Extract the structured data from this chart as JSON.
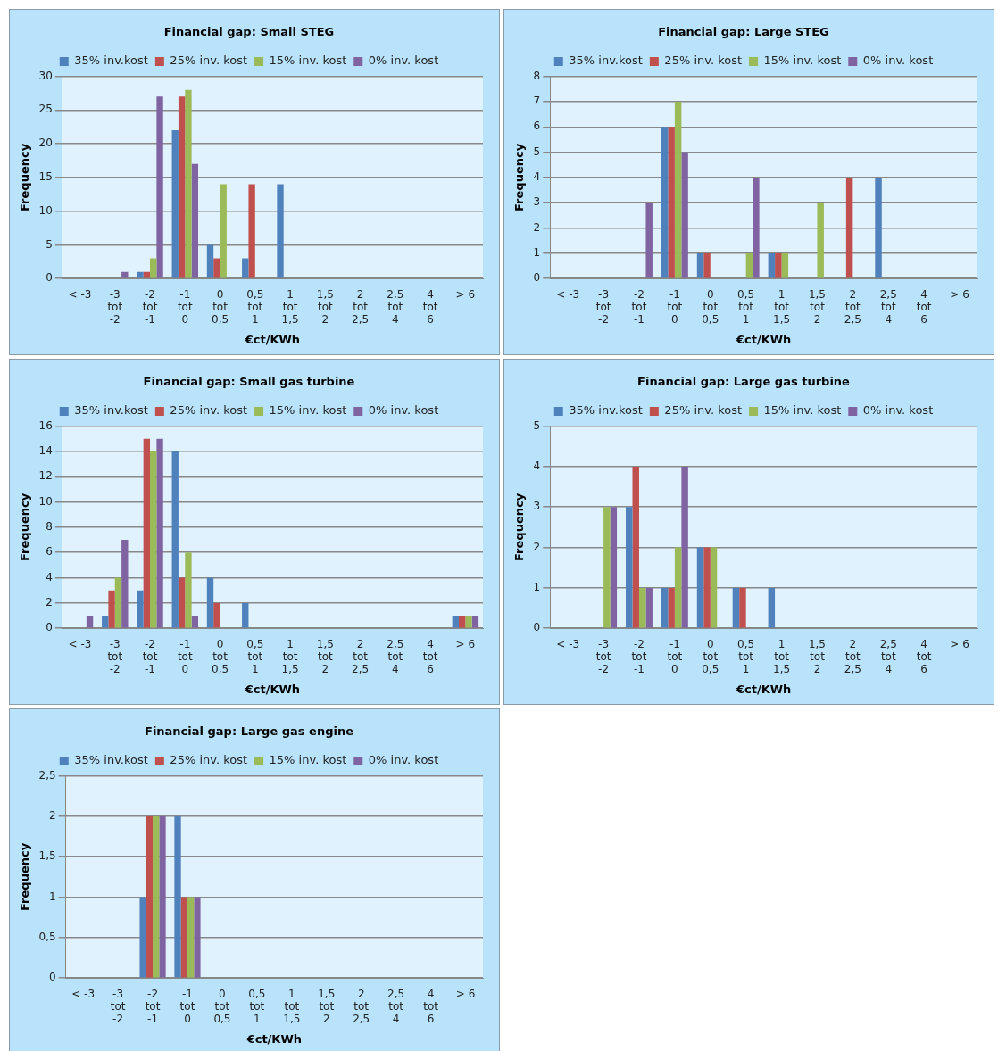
{
  "chart_data": [
    {
      "type": "bar",
      "title": "Financial gap: Small STEG",
      "xlabel": "€ct/KWh",
      "ylabel": "Frequency",
      "categories": [
        "< -3",
        "-3 tot -2",
        "-2 tot -1",
        "-1 tot 0",
        "0 tot 0,5",
        "0,5 tot 1",
        "1 tot 1,5",
        "1,5 tot 2",
        "2 tot 2,5",
        "2,5 tot 4",
        "4 tot 6",
        "> 6"
      ],
      "series": [
        {
          "name": "35% inv.kost",
          "color": "#4f81bd",
          "values": [
            0,
            0,
            1,
            22,
            5,
            3,
            14,
            0,
            0,
            0,
            0,
            0
          ]
        },
        {
          "name": "25% inv. kost",
          "color": "#c0504d",
          "values": [
            0,
            0,
            1,
            27,
            3,
            14,
            0,
            0,
            0,
            0,
            0,
            0
          ]
        },
        {
          "name": "15% inv. kost",
          "color": "#9bbb59",
          "values": [
            0,
            0,
            3,
            28,
            14,
            0,
            0,
            0,
            0,
            0,
            0,
            0
          ]
        },
        {
          "name": "0% inv. kost",
          "color": "#8064a2",
          "values": [
            0,
            1,
            27,
            17,
            0,
            0,
            0,
            0,
            0,
            0,
            0,
            0
          ]
        }
      ],
      "ylim": [
        0,
        30
      ],
      "yticks": [
        0,
        5,
        10,
        15,
        20,
        25,
        30
      ],
      "grid": "y",
      "legend": "top"
    },
    {
      "type": "bar",
      "title": "Financial gap: Large STEG",
      "xlabel": "€ct/KWh",
      "ylabel": "Frequency",
      "categories": [
        "< -3",
        "-3 tot -2",
        "-2 tot -1",
        "-1 tot 0",
        "0 tot 0,5",
        "0,5 tot 1",
        "1 tot 1,5",
        "1,5 tot 2",
        "2 tot 2,5",
        "2,5 tot 4",
        "4 tot 6",
        "> 6"
      ],
      "series": [
        {
          "name": "35% inv.kost",
          "color": "#4f81bd",
          "values": [
            0,
            0,
            0,
            6,
            1,
            0,
            1,
            0,
            0,
            4,
            0,
            0
          ]
        },
        {
          "name": "25% inv. kost",
          "color": "#c0504d",
          "values": [
            0,
            0,
            0,
            6,
            1,
            0,
            1,
            0,
            4,
            0,
            0,
            0
          ]
        },
        {
          "name": "15% inv. kost",
          "color": "#9bbb59",
          "values": [
            0,
            0,
            0,
            7,
            0,
            1,
            1,
            3,
            0,
            0,
            0,
            0
          ]
        },
        {
          "name": "0% inv. kost",
          "color": "#8064a2",
          "values": [
            0,
            0,
            3,
            5,
            0,
            4,
            0,
            0,
            0,
            0,
            0,
            0
          ]
        }
      ],
      "ylim": [
        0,
        8
      ],
      "yticks": [
        0,
        1,
        2,
        3,
        4,
        5,
        6,
        7,
        8
      ],
      "grid": "y",
      "legend": "top"
    },
    {
      "type": "bar",
      "title": "Financial gap: Small gas turbine",
      "xlabel": "€ct/KWh",
      "ylabel": "Frequency",
      "categories": [
        "< -3",
        "-3 tot -2",
        "-2 tot -1",
        "-1 tot 0",
        "0 tot 0,5",
        "0,5 tot 1",
        "1 tot 1,5",
        "1,5 tot 2",
        "2 tot 2,5",
        "2,5 tot 4",
        "4 tot 6",
        "> 6"
      ],
      "series": [
        {
          "name": "35% inv.kost",
          "color": "#4f81bd",
          "values": [
            0,
            1,
            3,
            14,
            4,
            2,
            0,
            0,
            0,
            0,
            0,
            1
          ]
        },
        {
          "name": "25% inv. kost",
          "color": "#c0504d",
          "values": [
            0,
            3,
            15,
            4,
            2,
            0,
            0,
            0,
            0,
            0,
            0,
            1
          ]
        },
        {
          "name": "15% inv. kost",
          "color": "#9bbb59",
          "values": [
            0,
            4,
            14,
            6,
            0,
            0,
            0,
            0,
            0,
            0,
            0,
            1
          ]
        },
        {
          "name": "0% inv. kost",
          "color": "#8064a2",
          "values": [
            1,
            7,
            15,
            1,
            0,
            0,
            0,
            0,
            0,
            0,
            0,
            1
          ]
        }
      ],
      "ylim": [
        0,
        16
      ],
      "yticks": [
        0,
        2,
        4,
        6,
        8,
        10,
        12,
        14,
        16
      ],
      "grid": "y",
      "legend": "top"
    },
    {
      "type": "bar",
      "title": "Financial gap: Large gas turbine",
      "xlabel": "€ct/KWh",
      "ylabel": "Frequency",
      "categories": [
        "< -3",
        "-3 tot -2",
        "-2 tot -1",
        "-1 tot 0",
        "0 tot 0,5",
        "0,5 tot 1",
        "1 tot 1,5",
        "1,5 tot 2",
        "2 tot 2,5",
        "2,5 tot 4",
        "4 tot 6",
        "> 6"
      ],
      "series": [
        {
          "name": "35% inv.kost",
          "color": "#4f81bd",
          "values": [
            0,
            0,
            3,
            1,
            2,
            1,
            1,
            0,
            0,
            0,
            0,
            0
          ]
        },
        {
          "name": "25% inv. kost",
          "color": "#c0504d",
          "values": [
            0,
            0,
            4,
            1,
            2,
            1,
            0,
            0,
            0,
            0,
            0,
            0
          ]
        },
        {
          "name": "15% inv. kost",
          "color": "#9bbb59",
          "values": [
            0,
            3,
            1,
            2,
            2,
            0,
            0,
            0,
            0,
            0,
            0,
            0
          ]
        },
        {
          "name": "0% inv. kost",
          "color": "#8064a2",
          "values": [
            0,
            3,
            1,
            4,
            0,
            0,
            0,
            0,
            0,
            0,
            0,
            0
          ]
        }
      ],
      "ylim": [
        0,
        5
      ],
      "yticks": [
        0,
        1,
        2,
        3,
        4,
        5
      ],
      "grid": "y",
      "legend": "top"
    },
    {
      "type": "bar",
      "title": "Financial gap: Large gas engine",
      "xlabel": "€ct/KWh",
      "ylabel": "Frequency",
      "categories": [
        "< -3",
        "-3 tot -2",
        "-2 tot -1",
        "-1 tot 0",
        "0 tot 0,5",
        "0,5 tot 1",
        "1 tot 1,5",
        "1,5 tot 2",
        "2 tot 2,5",
        "2,5 tot 4",
        "4 tot 6",
        "> 6"
      ],
      "series": [
        {
          "name": "35% inv.kost",
          "color": "#4f81bd",
          "values": [
            0,
            0,
            1,
            2,
            0,
            0,
            0,
            0,
            0,
            0,
            0,
            0
          ]
        },
        {
          "name": "25% inv. kost",
          "color": "#c0504d",
          "values": [
            0,
            0,
            2,
            1,
            0,
            0,
            0,
            0,
            0,
            0,
            0,
            0
          ]
        },
        {
          "name": "15% inv. kost",
          "color": "#9bbb59",
          "values": [
            0,
            0,
            2,
            1,
            0,
            0,
            0,
            0,
            0,
            0,
            0,
            0
          ]
        },
        {
          "name": "0% inv. kost",
          "color": "#8064a2",
          "values": [
            0,
            0,
            2,
            1,
            0,
            0,
            0,
            0,
            0,
            0,
            0,
            0
          ]
        }
      ],
      "ylim": [
        0,
        2.5
      ],
      "yticks": [
        0,
        {
          "value": 0.5,
          "label": "0,5"
        },
        1,
        {
          "value": 1.5,
          "label": "1,5"
        },
        2,
        {
          "value": 2.5,
          "label": "2,5"
        }
      ],
      "grid": "y",
      "legend": "top"
    }
  ]
}
